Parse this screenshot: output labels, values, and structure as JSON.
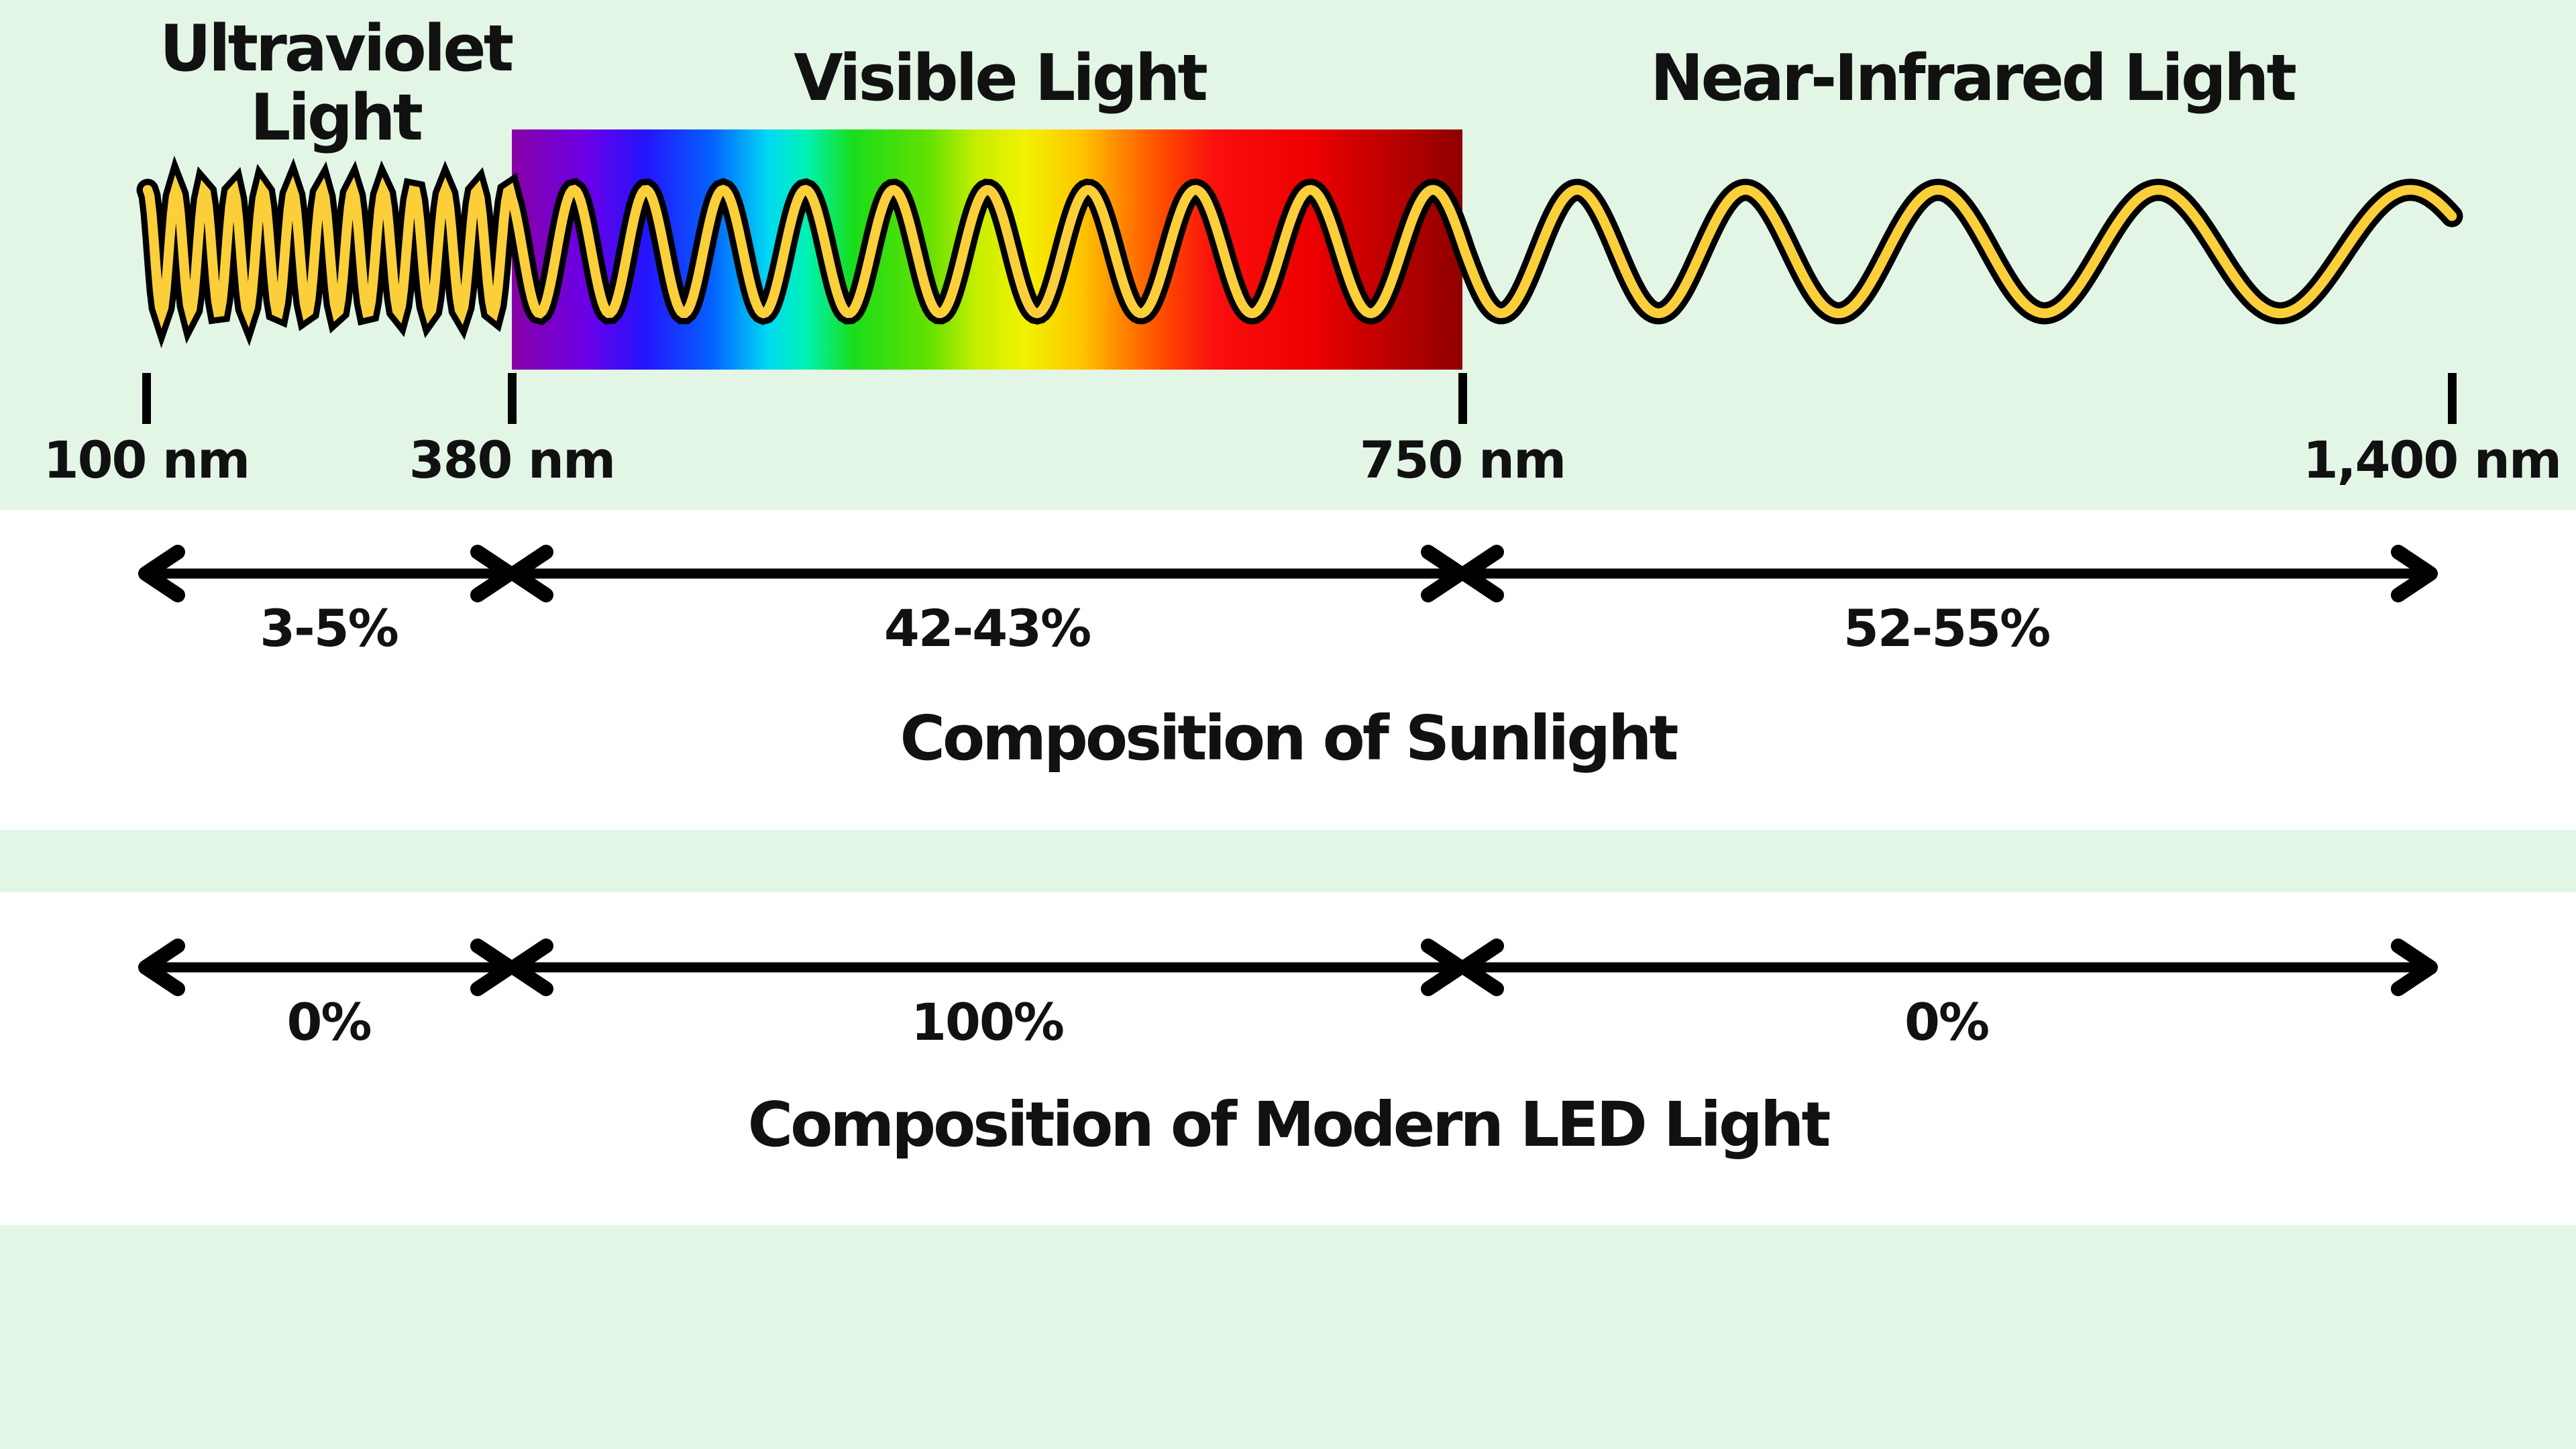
{
  "header": {
    "uv_label": {
      "line1": "Ultraviolet",
      "line2": "Light"
    },
    "visible_label": "Visible Light",
    "nir_label": "Near-Infrared Light",
    "wavelength_ticks": [
      "100 nm",
      "380 nm",
      "750 nm",
      "1,400 nm"
    ]
  },
  "sunlight_section": {
    "title": "Composition of Sunlight",
    "percentages": [
      "3-5%",
      "42-43%",
      "52-55%"
    ]
  },
  "led_section": {
    "title": "Composition of Modern LED Light",
    "percentages": [
      "0%",
      "100%",
      "0%"
    ]
  },
  "colors": {
    "background_green": "#E3F6E6",
    "panel_white": "#FFFFFF",
    "wave_yellow": "#FBCF3A",
    "outline_black": "#000000",
    "spectrum_start_purple": "#8800A6",
    "spectrum_end_dark_red": "#8E0000"
  }
}
